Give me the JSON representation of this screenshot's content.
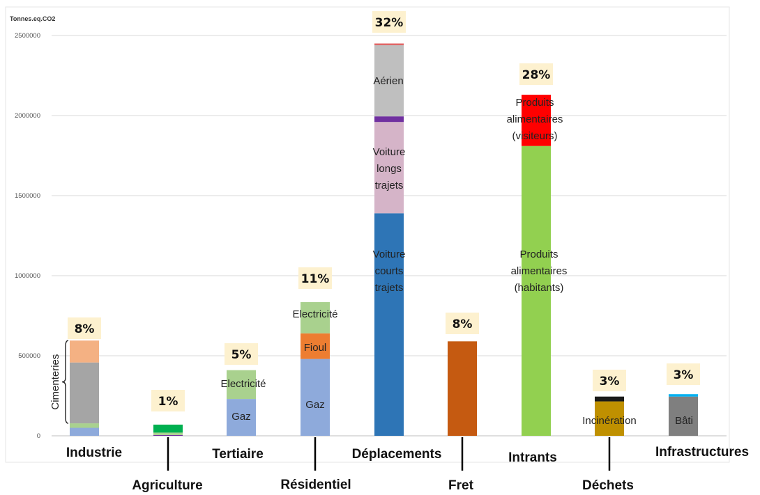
{
  "chart_data": {
    "type": "bar",
    "stacked": true,
    "ylabel": "Tonnes.eq.CO2",
    "ylim": [
      0,
      2500000
    ],
    "yticks": [
      0,
      500000,
      1000000,
      1500000,
      2000000,
      2500000
    ],
    "grid": true,
    "categories": [
      {
        "name": "Industrie",
        "share": "8%",
        "segments": [
          {
            "value": 50000,
            "color": "#8eaadb",
            "label": ""
          },
          {
            "value": 28000,
            "color": "#a9d18e",
            "label": ""
          },
          {
            "value": 380000,
            "color": "#a5a5a5",
            "label": ""
          },
          {
            "value": 137000,
            "color": "#f4b183",
            "label": ""
          }
        ],
        "bracket_label": "Cimenteries",
        "bracket_range": [
          78000,
          595000
        ]
      },
      {
        "name": "Agriculture",
        "share": "1%",
        "segments": [
          {
            "value": 5000,
            "color": "#7030a0",
            "label": ""
          },
          {
            "value": 15000,
            "color": "#a9d18e",
            "label": ""
          },
          {
            "value": 50000,
            "color": "#00b050",
            "label": ""
          }
        ]
      },
      {
        "name": "Tertiaire",
        "share": "5%",
        "segments": [
          {
            "value": 230000,
            "color": "#8eaadb",
            "label": "Gaz"
          },
          {
            "value": 180000,
            "color": "#a9d18e",
            "label": "Electricité"
          }
        ]
      },
      {
        "name": "Résidentiel",
        "share": "11%",
        "segments": [
          {
            "value": 480000,
            "color": "#8eaadb",
            "label": "Gaz"
          },
          {
            "value": 160000,
            "color": "#ed7d31",
            "label": "Fioul"
          },
          {
            "value": 195000,
            "color": "#a9d18e",
            "label": "Electricité"
          }
        ]
      },
      {
        "name": "Déplacements",
        "share": "32%",
        "segments": [
          {
            "value": 1390000,
            "color": "#2e75b6",
            "label": "Voiture courts trajets"
          },
          {
            "value": 570000,
            "color": "#d5b4c8",
            "label": "Voiture longs trajets"
          },
          {
            "value": 35000,
            "color": "#7030a0",
            "label": ""
          },
          {
            "value": 445000,
            "color": "#bfbfbf",
            "label": "Aérien"
          },
          {
            "value": 10000,
            "color": "#e05c5c",
            "label": ""
          }
        ]
      },
      {
        "name": "Fret",
        "share": "8%",
        "segments": [
          {
            "value": 590000,
            "color": "#c55a11",
            "label": ""
          }
        ]
      },
      {
        "name": "Intrants",
        "share": "28%",
        "segments": [
          {
            "value": 1810000,
            "color": "#92d050",
            "label": "Produits alimentaires (habitants)"
          },
          {
            "value": 320000,
            "color": "#ff0000",
            "label": "Produits alimentaires (visiteurs)"
          }
        ]
      },
      {
        "name": "Déchets",
        "share": "3%",
        "segments": [
          {
            "value": 215000,
            "color": "#bf9000",
            "label": "Incinération"
          },
          {
            "value": 30000,
            "color": "#1a1a1a",
            "label": ""
          }
        ]
      },
      {
        "name": "Infrastructures",
        "share": "3%",
        "segments": [
          {
            "value": 245000,
            "color": "#7f7f7f",
            "label": "Bâti"
          },
          {
            "value": 15000,
            "color": "#00b0f0",
            "label": ""
          }
        ]
      }
    ]
  }
}
